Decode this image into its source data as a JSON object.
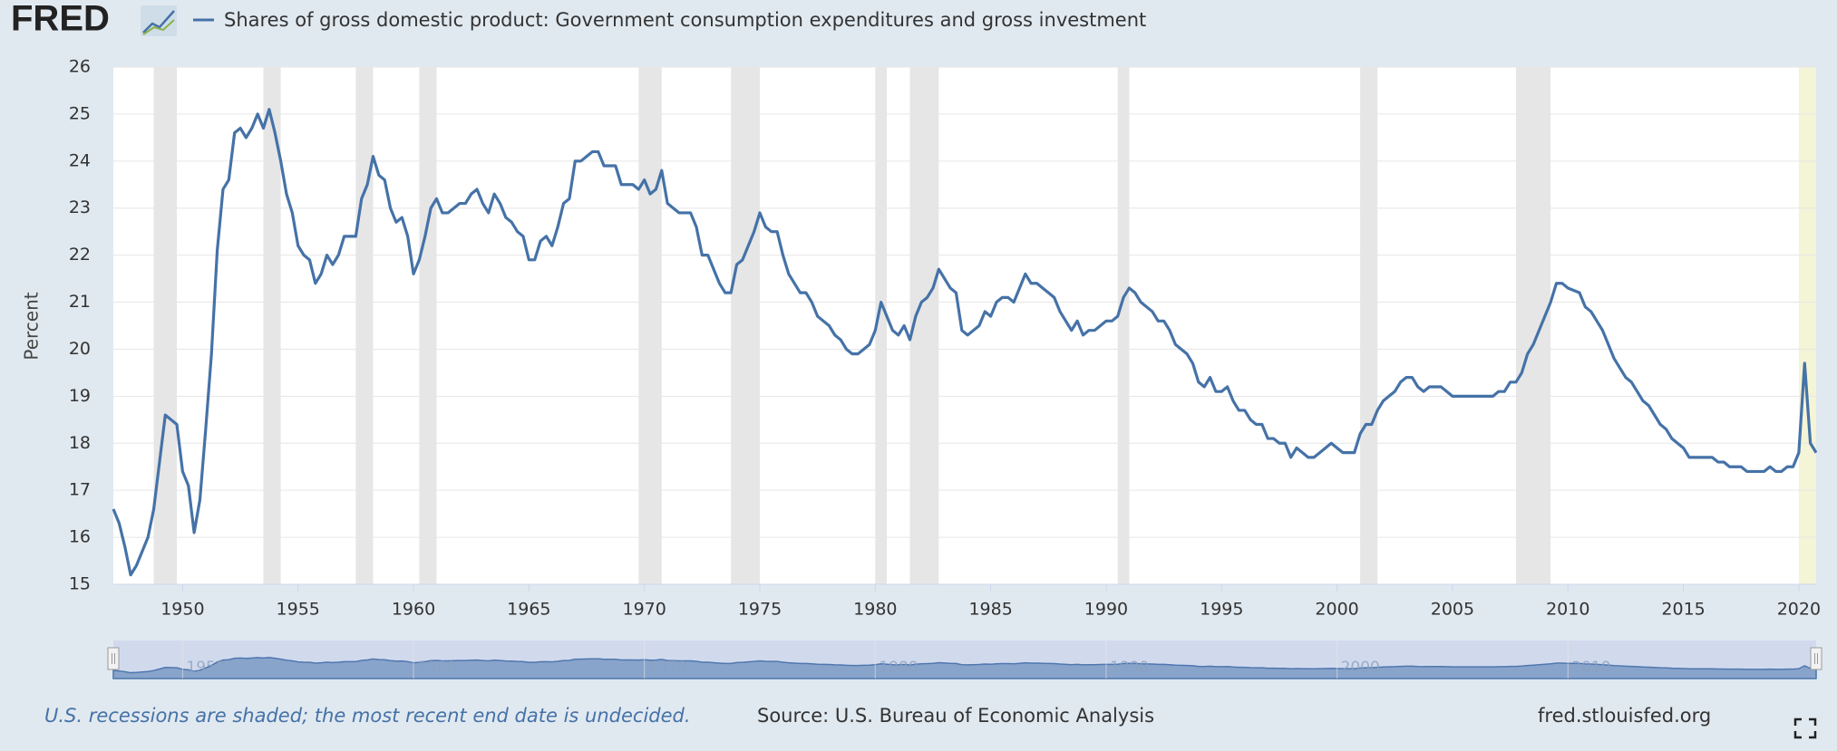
{
  "chart_data": {
    "type": "line",
    "logo": "FRED",
    "title": "Shares of gross domestic product: Government consumption expenditures and gross investment",
    "y_label": "Percent",
    "note": "U.S. recessions are shaded; the most recent end date is undecided.",
    "source": "Source: U.S. Bureau of Economic Analysis",
    "site": "fred.stlouisfed.org",
    "xlim": [
      1947,
      2020.75
    ],
    "ylim": [
      15,
      26
    ],
    "xticks": [
      1950,
      1955,
      1960,
      1965,
      1970,
      1975,
      1980,
      1985,
      1990,
      1995,
      2000,
      2005,
      2010,
      2015,
      2020
    ],
    "yticks": [
      15,
      16,
      17,
      18,
      19,
      20,
      21,
      22,
      23,
      24,
      25,
      26
    ],
    "navigator_ticks": [
      1950,
      1960,
      1970,
      1980,
      1990,
      2000,
      2010
    ],
    "grid": true,
    "recession_color": "#e6e6e6",
    "undecided_color": "#f4f4d6",
    "recessions": [
      [
        1948.75,
        1949.75
      ],
      [
        1953.5,
        1954.25
      ],
      [
        1957.5,
        1958.25
      ],
      [
        1960.25,
        1961.0
      ],
      [
        1969.75,
        1970.75
      ],
      [
        1973.75,
        1975.0
      ],
      [
        1980.0,
        1980.5
      ],
      [
        1981.5,
        1982.75
      ],
      [
        1990.5,
        1991.0
      ],
      [
        2001.0,
        2001.75
      ],
      [
        2007.75,
        2009.25
      ]
    ],
    "undecided_recession": [
      2020.0,
      2020.75
    ],
    "series": [
      {
        "name": "Shares of gross domestic product: Government consumption expenditures and gross investment",
        "color": "#4572a7",
        "x": [
          1947.0,
          1947.25,
          1947.5,
          1947.75,
          1948.0,
          1948.5,
          1948.75,
          1949.0,
          1949.25,
          1949.75,
          1950.0,
          1950.25,
          1950.5,
          1950.75,
          1951.0,
          1951.25,
          1951.5,
          1951.75,
          1952.0,
          1952.25,
          1952.5,
          1952.75,
          1953.0,
          1953.25,
          1953.5,
          1953.75,
          1954.0,
          1954.25,
          1954.5,
          1954.75,
          1955.0,
          1955.25,
          1955.5,
          1955.75,
          1956.0,
          1956.25,
          1956.5,
          1956.75,
          1957.0,
          1957.5,
          1957.75,
          1958.0,
          1958.25,
          1958.5,
          1958.75,
          1959.0,
          1959.25,
          1959.5,
          1959.75,
          1960.0,
          1960.25,
          1960.5,
          1960.75,
          1961.0,
          1961.25,
          1961.5,
          1961.75,
          1962.0,
          1962.25,
          1962.5,
          1962.75,
          1963.0,
          1963.25,
          1963.5,
          1963.75,
          1964.0,
          1964.25,
          1964.5,
          1964.75,
          1965.0,
          1965.25,
          1965.5,
          1965.75,
          1966.0,
          1966.25,
          1966.5,
          1966.75,
          1967.0,
          1967.25,
          1967.5,
          1967.75,
          1968.0,
          1968.25,
          1968.5,
          1968.75,
          1969.0,
          1969.5,
          1969.75,
          1970.0,
          1970.25,
          1970.5,
          1970.75,
          1971.0,
          1971.25,
          1971.5,
          1972.0,
          1972.25,
          1972.5,
          1972.75,
          1973.0,
          1973.25,
          1973.5,
          1973.75,
          1974.0,
          1974.25,
          1974.5,
          1974.75,
          1975.0,
          1975.25,
          1975.5,
          1975.75,
          1976.0,
          1976.25,
          1976.5,
          1976.75,
          1977.0,
          1977.25,
          1977.5,
          1977.75,
          1978.0,
          1978.25,
          1978.5,
          1978.75,
          1979.0,
          1979.25,
          1979.5,
          1979.75,
          1980.0,
          1980.25,
          1980.5,
          1980.75,
          1981.0,
          1981.25,
          1981.5,
          1981.75,
          1982.0,
          1982.25,
          1982.5,
          1982.75,
          1983.0,
          1983.25,
          1983.5,
          1983.75,
          1984.0,
          1984.25,
          1984.5,
          1984.75,
          1985.0,
          1985.25,
          1985.5,
          1985.75,
          1986.0,
          1986.25,
          1986.5,
          1986.75,
          1987.0,
          1987.25,
          1987.5,
          1987.75,
          1988.0,
          1988.25,
          1988.5,
          1988.75,
          1989.0,
          1989.25,
          1989.5,
          1989.75,
          1990.0,
          1990.25,
          1990.5,
          1990.75,
          1991.0,
          1991.25,
          1991.5,
          1991.75,
          1992.0,
          1992.25,
          1992.5,
          1992.75,
          1993.0,
          1993.25,
          1993.5,
          1993.75,
          1994.0,
          1994.25,
          1994.5,
          1994.75,
          1995.0,
          1995.25,
          1995.5,
          1995.75,
          1996.0,
          1996.25,
          1996.5,
          1996.75,
          1997.0,
          1997.25,
          1997.5,
          1997.75,
          1998.0,
          1998.25,
          1998.5,
          1998.75,
          1999.0,
          1999.5,
          1999.75,
          2000.0,
          2000.25,
          2000.75,
          2001.0,
          2001.25,
          2001.5,
          2001.75,
          2002.0,
          2002.5,
          2002.75,
          2003.0,
          2003.25,
          2003.5,
          2003.75,
          2004.0,
          2004.5,
          2004.75,
          2005.0,
          2006.75,
          2007.0,
          2007.25,
          2007.5,
          2007.75,
          2008.0,
          2008.25,
          2008.5,
          2008.75,
          2009.0,
          2009.25,
          2009.5,
          2009.75,
          2010.0,
          2010.5,
          2010.75,
          2011.0,
          2011.5,
          2012.0,
          2012.5,
          2012.75,
          2013.0,
          2013.25,
          2013.5,
          2013.75,
          2014.0,
          2014.25,
          2014.5,
          2015.0,
          2015.25,
          2016.25,
          2016.5,
          2016.75,
          2017.0,
          2017.5,
          2017.75,
          2018.5,
          2018.75,
          2019.0,
          2019.25,
          2019.5,
          2019.75,
          2020.0,
          2020.25,
          2020.5,
          2020.75
        ],
        "values": [
          16.6,
          16.3,
          15.8,
          15.2,
          15.4,
          16.0,
          16.6,
          17.6,
          18.6,
          18.4,
          17.4,
          17.1,
          16.1,
          16.8,
          18.3,
          19.9,
          22.1,
          23.4,
          23.6,
          24.6,
          24.7,
          24.5,
          24.7,
          25.0,
          24.7,
          25.1,
          24.6,
          24.0,
          23.3,
          22.9,
          22.2,
          22.0,
          21.9,
          21.4,
          21.6,
          22.0,
          21.8,
          22.0,
          22.4,
          22.4,
          23.2,
          23.5,
          24.1,
          23.7,
          23.6,
          23.0,
          22.7,
          22.8,
          22.4,
          21.6,
          21.9,
          22.4,
          23.0,
          23.2,
          22.9,
          22.9,
          23.0,
          23.1,
          23.1,
          23.3,
          23.4,
          23.1,
          22.9,
          23.3,
          23.1,
          22.8,
          22.7,
          22.5,
          22.4,
          21.9,
          21.9,
          22.3,
          22.4,
          22.2,
          22.6,
          23.1,
          23.2,
          24.0,
          24.0,
          24.1,
          24.2,
          24.2,
          23.9,
          23.9,
          23.9,
          23.5,
          23.5,
          23.4,
          23.6,
          23.3,
          23.4,
          23.8,
          23.1,
          23.0,
          22.9,
          22.9,
          22.6,
          22.0,
          22.0,
          21.7,
          21.4,
          21.2,
          21.2,
          21.8,
          21.9,
          22.2,
          22.5,
          22.9,
          22.6,
          22.5,
          22.5,
          22.0,
          21.6,
          21.4,
          21.2,
          21.2,
          21.0,
          20.7,
          20.6,
          20.5,
          20.3,
          20.2,
          20.0,
          19.9,
          19.9,
          20.0,
          20.1,
          20.4,
          21.0,
          20.7,
          20.4,
          20.3,
          20.5,
          20.2,
          20.7,
          21.0,
          21.1,
          21.3,
          21.7,
          21.5,
          21.3,
          21.2,
          20.4,
          20.3,
          20.4,
          20.5,
          20.8,
          20.7,
          21.0,
          21.1,
          21.1,
          21.0,
          21.3,
          21.6,
          21.4,
          21.4,
          21.3,
          21.2,
          21.1,
          20.8,
          20.6,
          20.4,
          20.6,
          20.3,
          20.4,
          20.4,
          20.5,
          20.6,
          20.6,
          20.7,
          21.1,
          21.3,
          21.2,
          21.0,
          20.9,
          20.8,
          20.6,
          20.6,
          20.4,
          20.1,
          20.0,
          19.9,
          19.7,
          19.3,
          19.2,
          19.4,
          19.1,
          19.1,
          19.2,
          18.9,
          18.7,
          18.7,
          18.5,
          18.4,
          18.4,
          18.1,
          18.1,
          18.0,
          18.0,
          17.7,
          17.9,
          17.8,
          17.7,
          17.7,
          17.9,
          18.0,
          17.9,
          17.8,
          17.8,
          18.2,
          18.4,
          18.4,
          18.7,
          18.9,
          19.1,
          19.3,
          19.4,
          19.4,
          19.2,
          19.1,
          19.2,
          19.2,
          19.1,
          19.0,
          19.0,
          19.1,
          19.1,
          19.3,
          19.3,
          19.5,
          19.9,
          20.1,
          20.4,
          20.7,
          21.0,
          21.4,
          21.4,
          21.3,
          21.2,
          20.9,
          20.8,
          20.4,
          19.8,
          19.4,
          19.3,
          19.1,
          18.9,
          18.8,
          18.6,
          18.4,
          18.3,
          18.1,
          17.9,
          17.7,
          17.7,
          17.6,
          17.6,
          17.5,
          17.5,
          17.4,
          17.4,
          17.5,
          17.4,
          17.4,
          17.5,
          17.5,
          17.8,
          19.7,
          18.0,
          17.8
        ]
      }
    ]
  }
}
